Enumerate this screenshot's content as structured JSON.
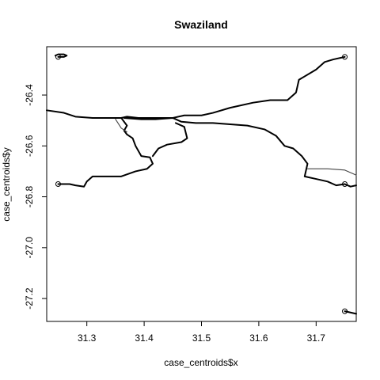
{
  "chart_data": {
    "type": "scatter",
    "title": "Swaziland",
    "xlabel": "case_centroids$x",
    "ylabel": "case_centroids$y",
    "xlim": [
      31.23,
      31.77
    ],
    "ylim": [
      -27.29,
      -26.21
    ],
    "x_ticks": [
      {
        "value": 31.3,
        "label": "31.3"
      },
      {
        "value": 31.4,
        "label": "31.4"
      },
      {
        "value": 31.5,
        "label": "31.5"
      },
      {
        "value": 31.6,
        "label": "31.6"
      },
      {
        "value": 31.7,
        "label": "31.7"
      }
    ],
    "y_ticks": [
      {
        "value": -26.4,
        "label": "-26.4"
      },
      {
        "value": -26.6,
        "label": "-26.6"
      },
      {
        "value": -26.8,
        "label": "-26.8"
      },
      {
        "value": -27.0,
        "label": "-27.0"
      },
      {
        "value": -27.2,
        "label": "-27.2"
      }
    ],
    "points": [
      {
        "x": 31.25,
        "y": -26.25
      },
      {
        "x": 31.75,
        "y": -26.25
      },
      {
        "x": 31.25,
        "y": -26.75
      },
      {
        "x": 31.75,
        "y": -26.75
      },
      {
        "x": 31.75,
        "y": -27.25
      }
    ],
    "series": [
      {
        "style": "thick",
        "values": [
          {
            "x": 31.23,
            "y": -26.46
          },
          {
            "x": 31.26,
            "y": -26.47
          },
          {
            "x": 31.28,
            "y": -26.485
          },
          {
            "x": 31.31,
            "y": -26.49
          },
          {
            "x": 31.335,
            "y": -26.49
          },
          {
            "x": 31.36,
            "y": -26.49
          },
          {
            "x": 31.37,
            "y": -26.485
          },
          {
            "x": 31.39,
            "y": -26.49
          },
          {
            "x": 31.42,
            "y": -26.49
          },
          {
            "x": 31.45,
            "y": -26.49
          },
          {
            "x": 31.47,
            "y": -26.48
          },
          {
            "x": 31.5,
            "y": -26.48
          },
          {
            "x": 31.52,
            "y": -26.47
          },
          {
            "x": 31.55,
            "y": -26.45
          },
          {
            "x": 31.59,
            "y": -26.43
          },
          {
            "x": 31.62,
            "y": -26.42
          },
          {
            "x": 31.65,
            "y": -26.42
          },
          {
            "x": 31.665,
            "y": -26.39
          },
          {
            "x": 31.67,
            "y": -26.34
          },
          {
            "x": 31.7,
            "y": -26.3
          },
          {
            "x": 31.715,
            "y": -26.27
          },
          {
            "x": 31.73,
            "y": -26.26
          },
          {
            "x": 31.75,
            "y": -26.25
          }
        ]
      },
      {
        "style": "thick",
        "values": [
          {
            "x": 31.25,
            "y": -26.75
          },
          {
            "x": 31.27,
            "y": -26.75
          },
          {
            "x": 31.28,
            "y": -26.755
          },
          {
            "x": 31.295,
            "y": -26.76
          },
          {
            "x": 31.3,
            "y": -26.74
          },
          {
            "x": 31.31,
            "y": -26.72
          },
          {
            "x": 31.335,
            "y": -26.72
          },
          {
            "x": 31.36,
            "y": -26.72
          },
          {
            "x": 31.385,
            "y": -26.7
          },
          {
            "x": 31.405,
            "y": -26.69
          },
          {
            "x": 31.415,
            "y": -26.67
          },
          {
            "x": 31.41,
            "y": -26.645
          },
          {
            "x": 31.395,
            "y": -26.64
          },
          {
            "x": 31.385,
            "y": -26.6
          },
          {
            "x": 31.38,
            "y": -26.57
          },
          {
            "x": 31.37,
            "y": -26.555
          },
          {
            "x": 31.365,
            "y": -26.54
          },
          {
            "x": 31.37,
            "y": -26.52
          },
          {
            "x": 31.36,
            "y": -26.49
          }
        ]
      },
      {
        "style": "thick",
        "values": [
          {
            "x": 31.365,
            "y": -26.49
          },
          {
            "x": 31.395,
            "y": -26.495
          },
          {
            "x": 31.42,
            "y": -26.495
          },
          {
            "x": 31.45,
            "y": -26.49
          },
          {
            "x": 31.465,
            "y": -26.505
          },
          {
            "x": 31.49,
            "y": -26.51
          },
          {
            "x": 31.52,
            "y": -26.51
          },
          {
            "x": 31.55,
            "y": -26.515
          },
          {
            "x": 31.58,
            "y": -26.52
          },
          {
            "x": 31.61,
            "y": -26.535
          },
          {
            "x": 31.63,
            "y": -26.56
          },
          {
            "x": 31.645,
            "y": -26.6
          },
          {
            "x": 31.66,
            "y": -26.61
          },
          {
            "x": 31.675,
            "y": -26.64
          },
          {
            "x": 31.685,
            "y": -26.67
          },
          {
            "x": 31.68,
            "y": -26.72
          },
          {
            "x": 31.7,
            "y": -26.73
          },
          {
            "x": 31.72,
            "y": -26.74
          },
          {
            "x": 31.735,
            "y": -26.755
          },
          {
            "x": 31.75,
            "y": -26.75
          },
          {
            "x": 31.76,
            "y": -26.76
          },
          {
            "x": 31.77,
            "y": -26.755
          }
        ]
      },
      {
        "style": "thick",
        "values": [
          {
            "x": 31.455,
            "y": -26.51
          },
          {
            "x": 31.47,
            "y": -26.525
          },
          {
            "x": 31.475,
            "y": -26.57
          },
          {
            "x": 31.465,
            "y": -26.585
          },
          {
            "x": 31.44,
            "y": -26.595
          },
          {
            "x": 31.425,
            "y": -26.61
          },
          {
            "x": 31.415,
            "y": -26.64
          }
        ]
      },
      {
        "style": "thin",
        "values": [
          {
            "x": 31.35,
            "y": -26.495
          },
          {
            "x": 31.36,
            "y": -26.53
          },
          {
            "x": 31.37,
            "y": -26.545
          }
        ]
      },
      {
        "style": "thin",
        "values": [
          {
            "x": 31.685,
            "y": -26.69
          },
          {
            "x": 31.72,
            "y": -26.69
          },
          {
            "x": 31.75,
            "y": -26.695
          },
          {
            "x": 31.765,
            "y": -26.71
          },
          {
            "x": 31.77,
            "y": -26.715
          }
        ]
      },
      {
        "style": "thick",
        "values": [
          {
            "x": 31.245,
            "y": -26.245
          },
          {
            "x": 31.25,
            "y": -26.24
          },
          {
            "x": 31.26,
            "y": -26.24
          },
          {
            "x": 31.265,
            "y": -26.245
          },
          {
            "x": 31.26,
            "y": -26.25
          },
          {
            "x": 31.25,
            "y": -26.25
          }
        ]
      },
      {
        "style": "thick",
        "values": [
          {
            "x": 31.75,
            "y": -27.25
          },
          {
            "x": 31.76,
            "y": -27.255
          },
          {
            "x": 31.77,
            "y": -27.26
          }
        ]
      }
    ]
  }
}
